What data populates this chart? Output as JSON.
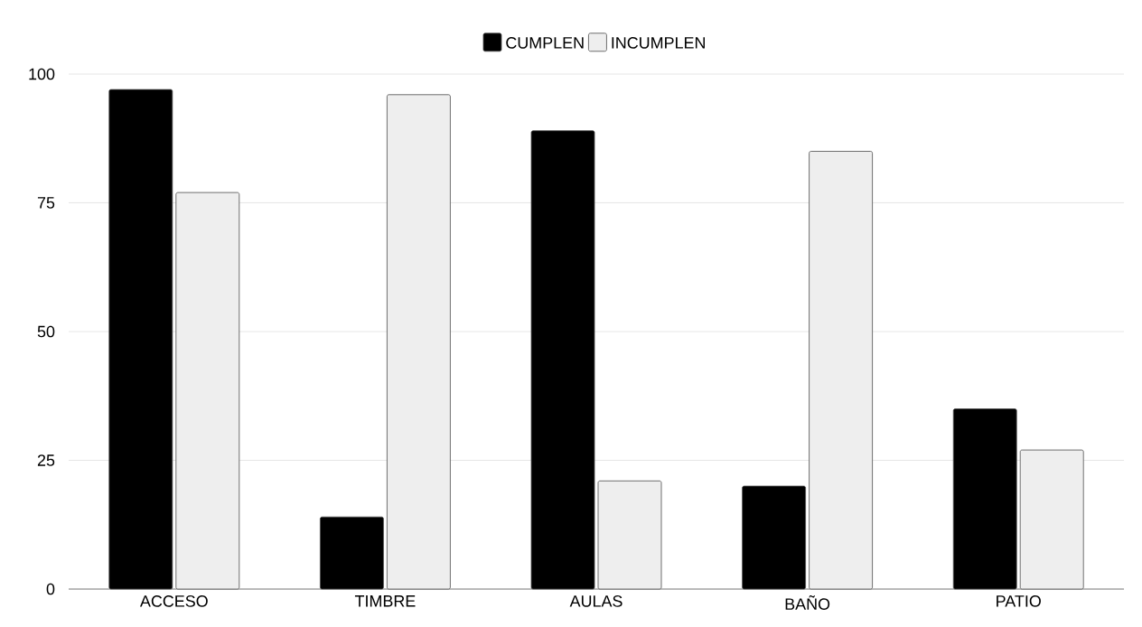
{
  "chart_data": {
    "type": "bar",
    "categories": [
      "ACCESO",
      "TIMBRE",
      "AULAS",
      "BAÑO",
      "PATIO"
    ],
    "series": [
      {
        "name": "CUMPLEN",
        "color": "#000000",
        "values": [
          97,
          14,
          89,
          20,
          35
        ]
      },
      {
        "name": "INCUMPLEN",
        "color": "#eeeeee",
        "values": [
          77,
          96,
          21,
          85,
          27
        ]
      }
    ],
    "ylim": [
      0,
      100
    ],
    "yticks": [
      0,
      25,
      50,
      75,
      100
    ],
    "grid": "y",
    "legend": "top"
  }
}
